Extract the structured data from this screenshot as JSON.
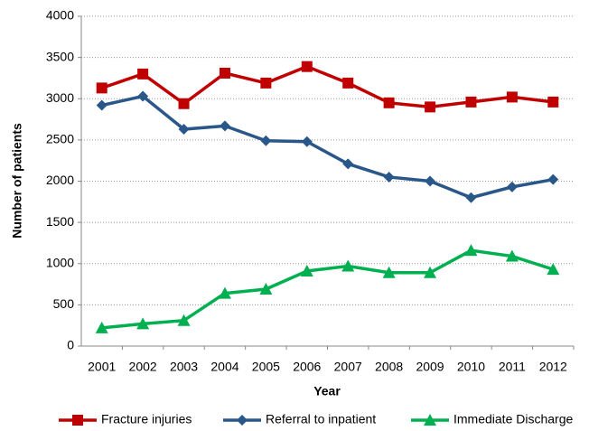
{
  "chart_data": {
    "type": "line",
    "x_label": "Year",
    "y_label": "Number of patients",
    "categories": [
      "2001",
      "2002",
      "2003",
      "2004",
      "2005",
      "2006",
      "2007",
      "2008",
      "2009",
      "2010",
      "2011",
      "2012"
    ],
    "series": [
      {
        "name": "Fracture injuries",
        "color": "#c00000",
        "marker": "square",
        "values": [
          3130,
          3300,
          2940,
          3310,
          3190,
          3390,
          3190,
          2950,
          2900,
          2960,
          3020,
          2960
        ]
      },
      {
        "name": "Referral to inpatient",
        "color": "#2a5789",
        "marker": "diamond",
        "values": [
          2920,
          3030,
          2630,
          2670,
          2490,
          2480,
          2210,
          2050,
          2000,
          1800,
          1930,
          2020
        ]
      },
      {
        "name": "Immediate Discharge",
        "color": "#00b050",
        "marker": "triangle",
        "values": [
          220,
          270,
          310,
          640,
          690,
          910,
          970,
          890,
          890,
          1160,
          1090,
          930
        ]
      }
    ],
    "ylim": [
      0,
      4000
    ],
    "yticks": [
      0,
      500,
      1000,
      1500,
      2000,
      2500,
      3000,
      3500,
      4000
    ],
    "grid": true,
    "legend": "bottom"
  }
}
